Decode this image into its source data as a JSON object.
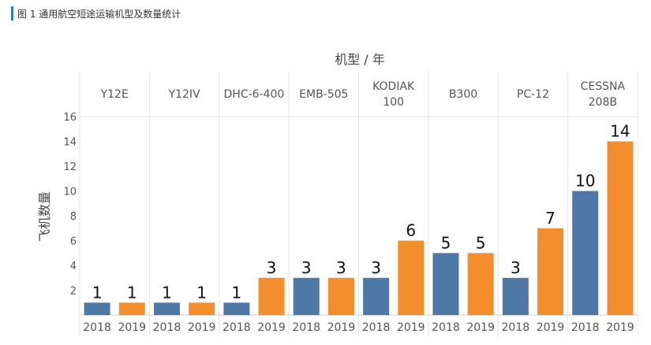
{
  "caption": "图 1 通用航空短途运输机型及数量统计",
  "chart_data": {
    "type": "bar",
    "column_header": "机型 / 年",
    "ylabel": "飞机数量",
    "ylim": [
      0,
      16
    ],
    "yticks": [
      2,
      4,
      6,
      8,
      10,
      12,
      14,
      16
    ],
    "years": [
      "2018",
      "2019"
    ],
    "colors": {
      "2018": "#4e79a7",
      "2019": "#f28e2b"
    },
    "grid": false,
    "groups": [
      {
        "name": "Y12E",
        "values": [
          1,
          1
        ]
      },
      {
        "name": "Y12IV",
        "values": [
          1,
          1
        ]
      },
      {
        "name": "DHC-6-400",
        "values": [
          1,
          3
        ]
      },
      {
        "name": "EMB-505",
        "values": [
          3,
          3
        ]
      },
      {
        "name": "KODIAK\n100",
        "values": [
          3,
          6
        ]
      },
      {
        "name": "B300",
        "values": [
          5,
          5
        ]
      },
      {
        "name": "PC-12",
        "values": [
          3,
          7
        ]
      },
      {
        "name": "CESSNA\n208B",
        "values": [
          10,
          14
        ]
      }
    ]
  }
}
